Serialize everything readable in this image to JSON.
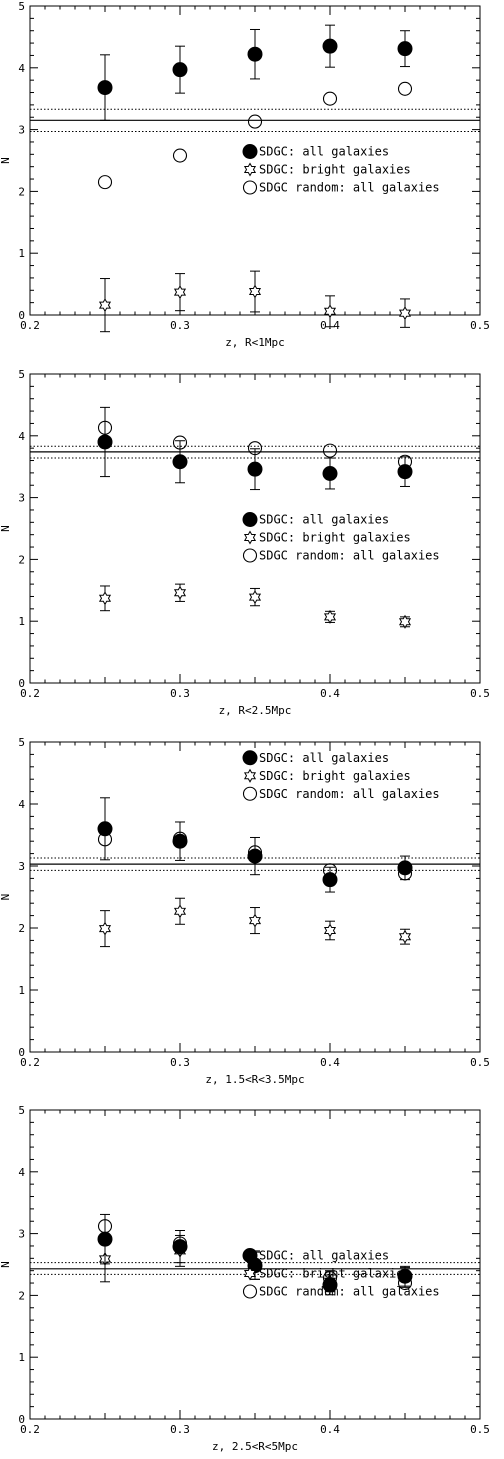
{
  "chart_data": [
    {
      "type": "scatter",
      "xlabel": "z,  R<1Mpc",
      "ylabel": "N",
      "xlim": [
        0.2,
        0.5
      ],
      "ylim": [
        0,
        5
      ],
      "xticks": [
        "0.2",
        "0.3",
        "0.4",
        "0.5"
      ],
      "yticks": [
        "0",
        "1",
        "2",
        "3",
        "4",
        "5"
      ],
      "legend": [
        "SDGC: all galaxies",
        "SDGC: bright galaxies",
        "SDGC random: all galaxies"
      ],
      "legend_position": "center-right",
      "x": [
        0.25,
        0.3,
        0.35,
        0.4,
        0.45
      ],
      "series": [
        {
          "marker": "filled-circle",
          "values": [
            3.68,
            3.97,
            4.22,
            4.35,
            4.31
          ],
          "errors": [
            0.53,
            0.38,
            0.4,
            0.34,
            0.29
          ]
        },
        {
          "marker": "star",
          "values": [
            0.16,
            0.37,
            0.38,
            0.06,
            0.03
          ],
          "errors": [
            0.43,
            0.3,
            0.33,
            0.25,
            0.23
          ]
        },
        {
          "marker": "open-circle",
          "values": [
            2.15,
            2.58,
            3.13,
            3.5,
            3.66
          ],
          "errors": [
            0,
            0,
            0,
            0,
            0
          ]
        }
      ],
      "hlines": [
        {
          "y": 3.15,
          "style": "solid"
        },
        {
          "y": 3.33,
          "style": "dotted"
        },
        {
          "y": 2.97,
          "style": "dotted"
        }
      ]
    },
    {
      "type": "scatter",
      "xlabel": "z,  R<2.5Mpc",
      "ylabel": "N",
      "xlim": [
        0.2,
        0.5
      ],
      "ylim": [
        0,
        5
      ],
      "xticks": [
        "0.2",
        "0.3",
        "0.4",
        "0.5"
      ],
      "yticks": [
        "0",
        "1",
        "2",
        "3",
        "4",
        "5"
      ],
      "legend": [
        "SDGC: all galaxies",
        "SDGC: bright galaxies",
        "SDGC random: all galaxies"
      ],
      "legend_position": "center-right",
      "x": [
        0.25,
        0.3,
        0.35,
        0.4,
        0.45
      ],
      "series": [
        {
          "marker": "filled-circle",
          "values": [
            3.9,
            3.58,
            3.46,
            3.39,
            3.42
          ],
          "errors": [
            0.56,
            0.34,
            0.33,
            0.25,
            0.24
          ]
        },
        {
          "marker": "star",
          "values": [
            1.37,
            1.46,
            1.39,
            1.07,
            0.99
          ],
          "errors": [
            0.2,
            0.14,
            0.14,
            0.09,
            0.08
          ]
        },
        {
          "marker": "open-circle",
          "values": [
            4.13,
            3.89,
            3.8,
            3.76,
            3.58
          ],
          "errors": [
            0,
            0,
            0,
            0,
            0
          ]
        }
      ],
      "hlines": [
        {
          "y": 3.74,
          "style": "solid"
        },
        {
          "y": 3.83,
          "style": "dotted"
        },
        {
          "y": 3.64,
          "style": "dotted"
        }
      ]
    },
    {
      "type": "scatter",
      "xlabel": "z,  1.5<R<3.5Mpc",
      "ylabel": "N",
      "xlim": [
        0.2,
        0.5
      ],
      "ylim": [
        0,
        5
      ],
      "xticks": [
        "0.2",
        "0.3",
        "0.4",
        "0.5"
      ],
      "yticks": [
        "0",
        "1",
        "2",
        "3",
        "4",
        "5"
      ],
      "legend": [
        "SDGC: all galaxies",
        "SDGC: bright galaxies",
        "SDGC random: all galaxies"
      ],
      "legend_position": "top-right",
      "x": [
        0.25,
        0.3,
        0.35,
        0.4,
        0.45
      ],
      "series": [
        {
          "marker": "filled-circle",
          "values": [
            3.6,
            3.4,
            3.16,
            2.78,
            2.97
          ],
          "errors": [
            0.5,
            0.31,
            0.3,
            0.2,
            0.19
          ]
        },
        {
          "marker": "star",
          "values": [
            1.99,
            2.27,
            2.12,
            1.96,
            1.86
          ],
          "errors": [
            0.29,
            0.21,
            0.21,
            0.15,
            0.12
          ]
        },
        {
          "marker": "open-circle",
          "values": [
            3.43,
            3.44,
            3.22,
            2.93,
            2.88
          ],
          "errors": [
            0,
            0,
            0,
            0,
            0
          ]
        }
      ],
      "hlines": [
        {
          "y": 3.03,
          "style": "solid"
        },
        {
          "y": 3.13,
          "style": "dotted"
        },
        {
          "y": 2.93,
          "style": "dotted"
        }
      ]
    },
    {
      "type": "scatter",
      "xlabel": "z,  2.5<R<5Mpc",
      "ylabel": "N",
      "xlim": [
        0.2,
        0.5
      ],
      "ylim": [
        0,
        5
      ],
      "xticks": [
        "0.2",
        "0.3",
        "0.4",
        "0.5"
      ],
      "yticks": [
        "0",
        "1",
        "2",
        "3",
        "4",
        "5"
      ],
      "legend": [
        "SDGC: all galaxies",
        "SDGC: bright galaxies",
        "SDGC random: all galaxies"
      ],
      "legend_position": "center-right",
      "x": [
        0.25,
        0.3,
        0.35,
        0.4,
        0.45
      ],
      "series": [
        {
          "marker": "filled-circle",
          "values": [
            2.91,
            2.79,
            2.48,
            2.17,
            2.31
          ],
          "errors": [
            0.4,
            0.26,
            0.22,
            0.16,
            0.16
          ]
        },
        {
          "marker": "star",
          "values": [
            2.59,
            2.72,
            2.49,
            2.23,
            2.29
          ],
          "errors": [
            0.37,
            0.25,
            0.23,
            0.17,
            0.16
          ]
        },
        {
          "marker": "open-circle",
          "values": [
            3.12,
            2.84,
            2.5,
            2.28,
            2.2
          ],
          "errors": [
            0,
            0,
            0,
            0,
            0
          ]
        }
      ],
      "hlines": [
        {
          "y": 2.43,
          "style": "solid"
        },
        {
          "y": 2.53,
          "style": "dotted"
        },
        {
          "y": 2.34,
          "style": "dotted"
        }
      ]
    }
  ]
}
